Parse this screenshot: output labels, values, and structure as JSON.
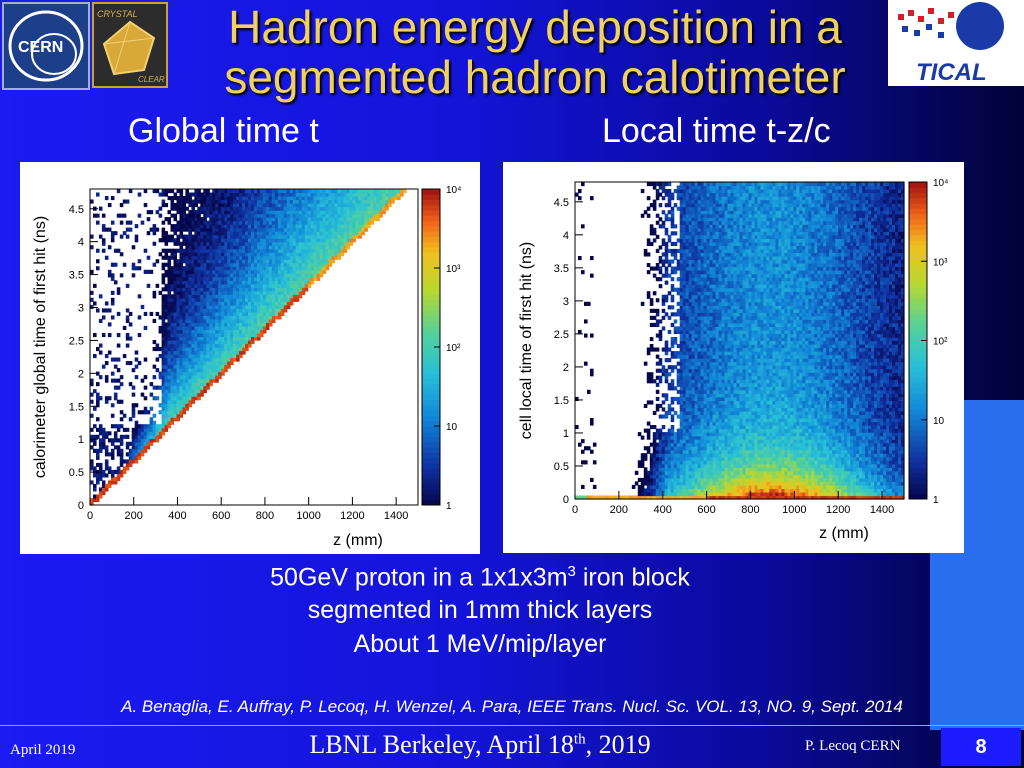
{
  "title": {
    "line1": "Hadron energy deposition in a",
    "line2": "segmented hadron calotimeter"
  },
  "logos": {
    "cern": "CERN",
    "crystal_clear_top": "CRYSTAL",
    "crystal_clear_bottom": "CLEAR",
    "tical": "TICAL"
  },
  "subtitles": {
    "left": "Global time t",
    "right": "Local time t-z/c"
  },
  "caption": {
    "line1_pre": "50GeV proton in a 1x1x3m",
    "line1_sup": "3",
    "line1_post": " iron block",
    "line2": "segmented in 1mm thick layers",
    "line3": "About 1 MeV/mip/layer"
  },
  "citation": "A. Benaglia,  E. Auffray, P. Lecoq, H. Wenzel, A. Para, IEEE Trans. Nucl. Sc. VOL. 13, NO. 9, Sept. 2014",
  "footer": {
    "date": "April 2019",
    "center_pre": "LBNL Berkeley, April 18",
    "center_sup": "th",
    "center_post": ", 2019",
    "author": "P. Lecoq  CERN",
    "page": "8"
  },
  "colors": {
    "title": "#f0d060",
    "background": "#1414d8"
  },
  "chart_data": [
    {
      "type": "heatmap",
      "ylabel": "calorimeter global time of first hit (ns)",
      "xlabel": "z (mm)",
      "xlim": [
        0,
        1500
      ],
      "ylim": [
        0,
        4.8
      ],
      "xticks": [
        "0",
        "200",
        "400",
        "600",
        "800",
        "1000",
        "1200",
        "1400"
      ],
      "yticks": [
        "0",
        "0.5",
        "1",
        "1.5",
        "2",
        "2.5",
        "3",
        "3.5",
        "4",
        "4.5"
      ],
      "colorbar": {
        "scale": "log",
        "range": [
          1,
          10000
        ],
        "ticks": [
          "1",
          "10",
          "10²",
          "10³",
          "10⁴"
        ]
      },
      "description_of_density": {
        "diagonal_band_slope_ns_per_mm": 0.00333,
        "band": "t = z/c, highest density along diagonal"
      }
    },
    {
      "type": "heatmap",
      "ylabel": "cell local time of first hit (ns)",
      "xlabel": "z (mm)",
      "xlim": [
        0,
        1500
      ],
      "ylim": [
        0,
        4.8
      ],
      "xticks": [
        "0",
        "200",
        "400",
        "600",
        "800",
        "1000",
        "1200",
        "1400"
      ],
      "yticks": [
        "0",
        "0.5",
        "1",
        "1.5",
        "2",
        "2.5",
        "3",
        "3.5",
        "4",
        "4.5"
      ],
      "colorbar": {
        "scale": "log",
        "range": [
          1,
          10000
        ],
        "ticks": [
          "1",
          "10",
          "10²",
          "10³",
          "10⁴"
        ]
      },
      "description_of_density": {
        "band": "flat band near t-z/c = 0, peak around z 600-1200 mm"
      }
    }
  ]
}
